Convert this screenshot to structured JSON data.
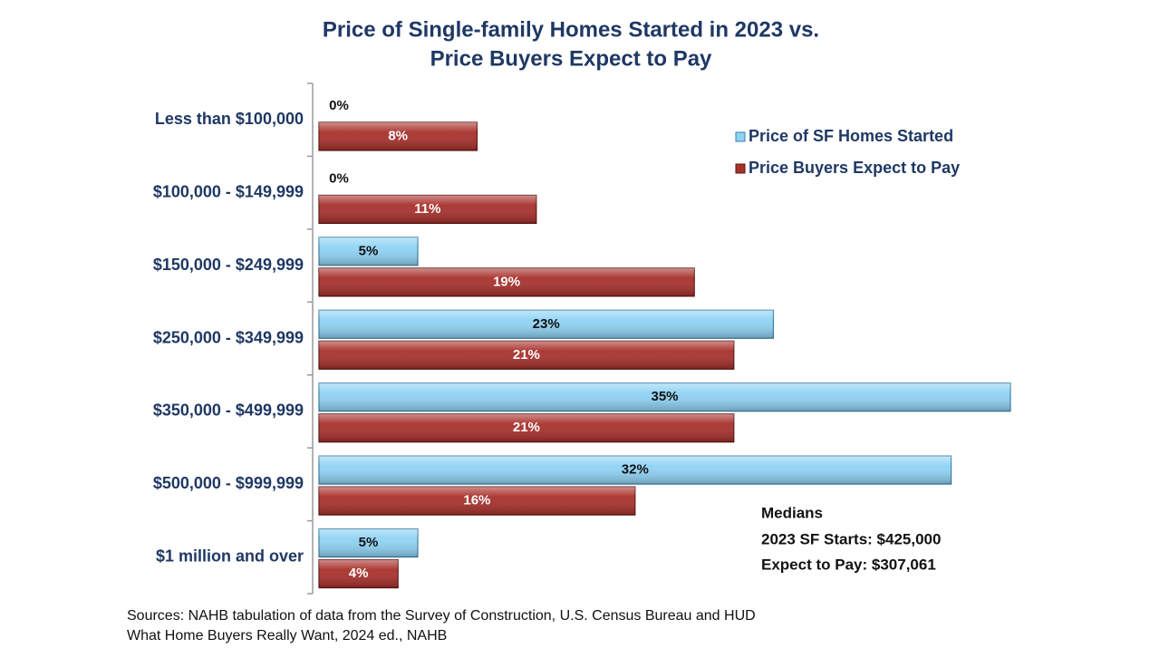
{
  "chart_data": {
    "type": "hbar",
    "title": [
      "Price of Single-family  Homes Started in 2023 vs.",
      "Price Buyers Expect to Pay"
    ],
    "categories": [
      "Less than $100,000",
      "$100,000 - $149,999",
      "$150,000 - $249,999",
      "$250,000 - $349,999",
      "$350,000 - $499,999",
      "$500,000 - $999,999",
      "$1 million and over"
    ],
    "series": [
      {
        "name": "Price of SF Homes Started",
        "color": "#8fd3f4",
        "values": [
          0,
          0,
          5,
          23,
          35,
          32,
          5
        ],
        "value_labels": [
          "0%",
          "0%",
          "5%",
          "23%",
          "35%",
          "32%",
          "5%"
        ]
      },
      {
        "name": "Price Buyers Expect to Pay",
        "color": "#a8302b",
        "values": [
          8,
          11,
          19,
          21,
          21,
          16,
          4
        ],
        "value_labels": [
          "8%",
          "11%",
          "19%",
          "21%",
          "21%",
          "16%",
          "4%"
        ]
      }
    ],
    "annotations": [
      "Medians",
      "2023 SF Starts: $425,000",
      "Expect to Pay: $307,061"
    ],
    "sources": [
      "Sources: NAHB tabulation of data from the Survey of Construction, U.S. Census Bureau and HUD",
      "What Home Buyers Really Want, 2024 ed., NAHB"
    ]
  }
}
